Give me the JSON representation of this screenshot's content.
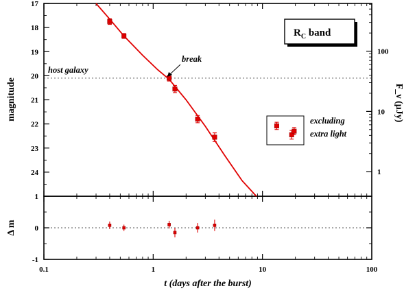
{
  "chart_data": [
    {
      "panel": "main",
      "type": "scatter",
      "ylabel": "magnitude",
      "y2label": "F_ν (μJy)",
      "y2_ticks": [
        "100",
        "10",
        "1"
      ],
      "xscale": "log",
      "xlim": [
        0.1,
        100
      ],
      "ylim": [
        17,
        25
      ],
      "y_inverted": true,
      "y_ticks": [
        "17",
        "18",
        "19",
        "20",
        "21",
        "22",
        "23",
        "24"
      ],
      "legend_title": "R",
      "legend_sub": "C",
      "legend_suffix": " band",
      "legend_placement": "top-right",
      "annotations": {
        "break": "break",
        "host": "host galaxy",
        "excl_line1": "excluding",
        "excl_line2": "extra light"
      },
      "host_galaxy_mag": 20.1,
      "series": [
        {
          "points": [
            {
              "x": 0.4,
              "y": 17.75,
              "err": 0.12
            },
            {
              "x": 0.54,
              "y": 18.35,
              "err": 0.1
            },
            {
              "x": 1.4,
              "y": 20.1,
              "err": 0.12
            },
            {
              "x": 1.58,
              "y": 20.55,
              "err": 0.15
            },
            {
              "x": 2.55,
              "y": 21.8,
              "err": 0.15
            },
            {
              "x": 3.65,
              "y": 22.55,
              "err": 0.18
            }
          ]
        },
        {
          "points": [
            {
              "x": 13.5,
              "y": 22.08,
              "err": 0.15
            },
            {
              "x": 18.5,
              "y": 22.45,
              "err": 0.18
            },
            {
              "x": 19.5,
              "y": 22.3,
              "err": 0.15
            }
          ]
        }
      ],
      "model_curve": [
        {
          "x": 0.3,
          "y": 17.0
        },
        {
          "x": 0.4,
          "y": 17.65
        },
        {
          "x": 0.54,
          "y": 18.35
        },
        {
          "x": 0.8,
          "y": 19.15
        },
        {
          "x": 1.1,
          "y": 19.75
        },
        {
          "x": 1.4,
          "y": 20.15
        },
        {
          "x": 2.0,
          "y": 21.0
        },
        {
          "x": 3.0,
          "y": 22.1
        },
        {
          "x": 4.5,
          "y": 23.3
        },
        {
          "x": 6.5,
          "y": 24.35
        },
        {
          "x": 8.8,
          "y": 25.0
        }
      ]
    },
    {
      "panel": "residual",
      "type": "scatter",
      "xlabel": "t (days after the burst)",
      "ylabel": "Δ m",
      "xscale": "log",
      "xlim": [
        0.1,
        100
      ],
      "ylim": [
        -1,
        1
      ],
      "x_ticks": [
        "0.1",
        "1",
        "10",
        "100"
      ],
      "y_ticks": [
        "1",
        "0",
        "-1"
      ],
      "points": [
        {
          "x": 0.4,
          "y": 0.08,
          "err": 0.12
        },
        {
          "x": 0.54,
          "y": 0.0,
          "err": 0.1
        },
        {
          "x": 1.4,
          "y": 0.1,
          "err": 0.12
        },
        {
          "x": 1.58,
          "y": -0.15,
          "err": 0.15
        },
        {
          "x": 2.55,
          "y": 0.0,
          "err": 0.15
        },
        {
          "x": 3.65,
          "y": 0.08,
          "err": 0.18
        }
      ]
    }
  ]
}
